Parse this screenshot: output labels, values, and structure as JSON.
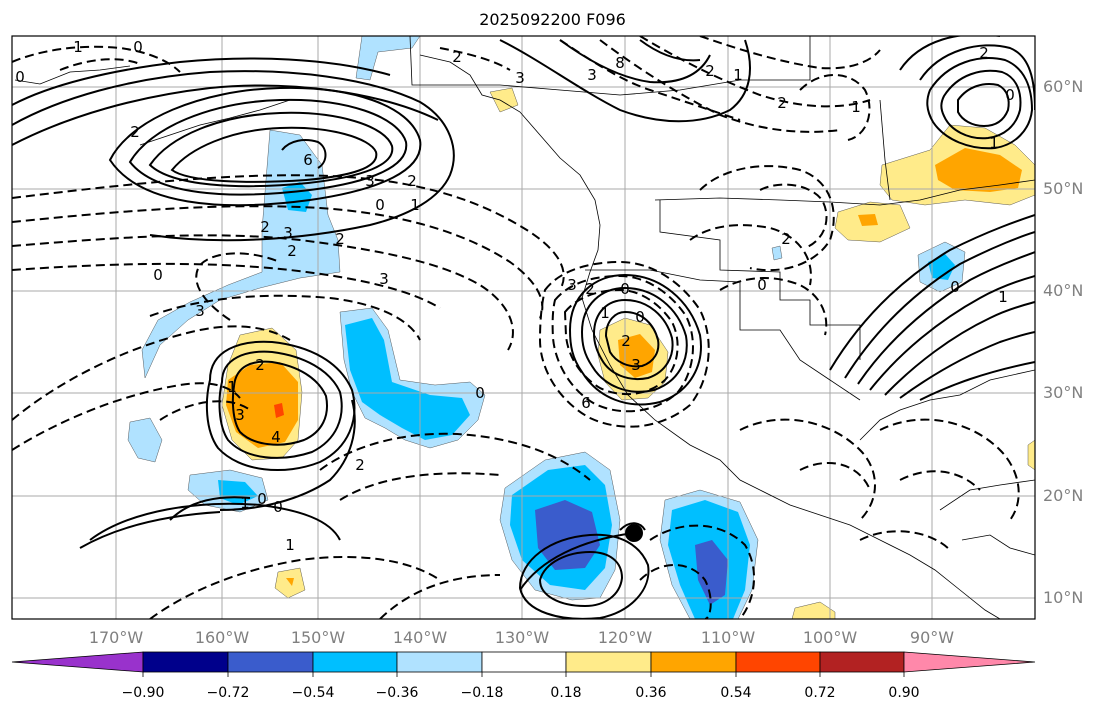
{
  "title": "2025092200 F096",
  "lat_labels": [
    "60°N",
    "50°N",
    "40°N",
    "30°N",
    "20°N",
    "10°N"
  ],
  "lon_labels": [
    "170°W",
    "160°W",
    "150°W",
    "140°W",
    "130°W",
    "120°W",
    "110°W",
    "100°W",
    "90°W"
  ],
  "colorbar": {
    "ticks": [
      "−0.90",
      "−0.72",
      "−0.54",
      "−0.36",
      "−0.18",
      "0.18",
      "0.36",
      "0.54",
      "0.72",
      "0.90"
    ],
    "colors": [
      "#9932cc",
      "#00008b",
      "#3a5ccc",
      "#00bfff",
      "#b0e2ff",
      "#ffffff",
      "#ffeb8a",
      "#ffa500",
      "#ff4500",
      "#b22222",
      "#ff88aa"
    ]
  },
  "contour_labels": [
    "0",
    "1",
    "2",
    "0",
    "2",
    "3",
    "6",
    "3",
    "2",
    "0",
    "1",
    "2",
    "2",
    "3",
    "0",
    "3",
    "2",
    "1",
    "3",
    "4",
    "1",
    "0",
    "0",
    "1",
    "2",
    "0",
    "2",
    "3",
    "3",
    "2",
    "0",
    "1",
    "0",
    "2",
    "3",
    "6",
    "8",
    "3",
    "2",
    "1",
    "2",
    "1",
    "0",
    "2",
    "1",
    "0",
    "2",
    "0",
    "1"
  ]
}
